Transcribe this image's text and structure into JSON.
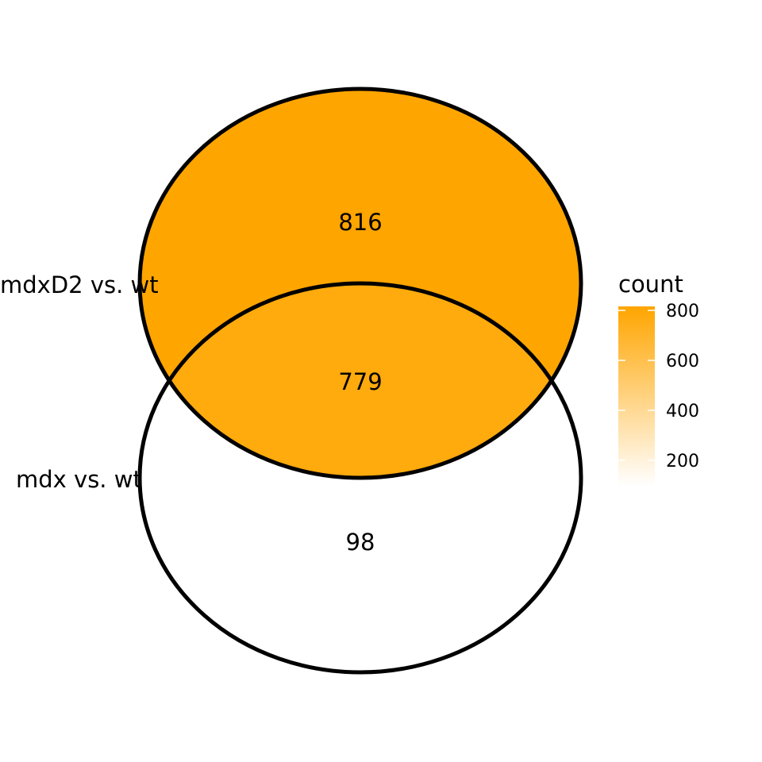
{
  "sets": [
    {
      "id": "A",
      "label": "mdxD2 vs. wt"
    },
    {
      "id": "B",
      "label": "mdx vs. wt"
    }
  ],
  "regions": [
    {
      "id": "A_only",
      "sets": [
        "A"
      ],
      "count": 816,
      "label": "816"
    },
    {
      "id": "A_and_B",
      "sets": [
        "A",
        "B"
      ],
      "count": 779,
      "label": "779"
    },
    {
      "id": "B_only",
      "sets": [
        "B"
      ],
      "count": 98,
      "label": "98"
    }
  ],
  "legend": {
    "title": "count",
    "min": 98,
    "max": 816,
    "ticks": [
      {
        "value": 800,
        "label": "800"
      },
      {
        "value": 600,
        "label": "600"
      },
      {
        "value": 400,
        "label": "400"
      },
      {
        "value": 200,
        "label": "200"
      }
    ],
    "low_color": "#ffffff",
    "high_color": "#ffa500"
  },
  "colors": {
    "outline": "#000000",
    "background": "#ffffff"
  }
}
